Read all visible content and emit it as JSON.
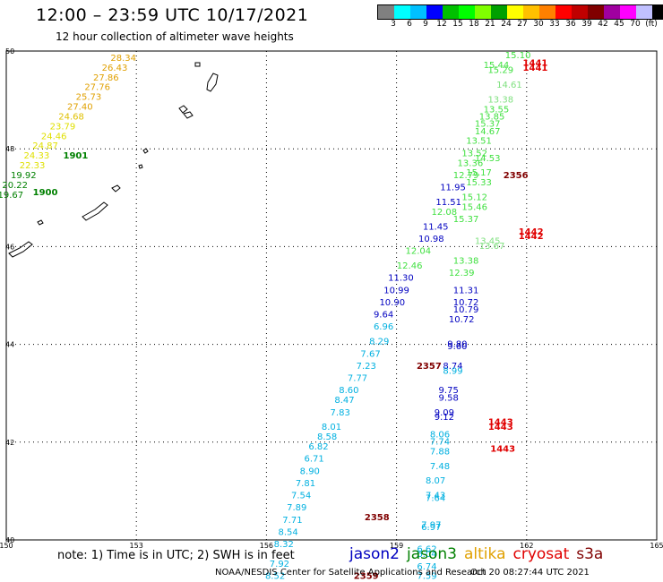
{
  "header": {
    "title": "12:00 – 23:59 UTC 10/17/2021",
    "subtitle": "12 hour collection of altimeter wave heights"
  },
  "legend": {
    "colors": [
      "#808080",
      "#00ffff",
      "#00c0ff",
      "#0000ff",
      "#00c000",
      "#00ff00",
      "#80ff00",
      "#00a000",
      "#ffff00",
      "#ffc000",
      "#ff8000",
      "#ff0000",
      "#c00000",
      "#800000",
      "#a000a0",
      "#ff00ff",
      "#c0c0ff",
      "#000000"
    ],
    "labels": [
      "3",
      "6",
      "9",
      "12",
      "15",
      "18",
      "21",
      "24",
      "27",
      "30",
      "33",
      "36",
      "39",
      "42",
      "45",
      "70",
      "(ft)"
    ]
  },
  "axes": {
    "lon_ticks": [
      "150",
      "153",
      "156",
      "159",
      "162",
      "165"
    ],
    "lat_ticks": [
      "40",
      "42",
      "44",
      "46",
      "48",
      "50"
    ]
  },
  "points": [
    {
      "t": "28.34",
      "c": "#e0a000",
      "lon": 152.7,
      "lat": 49.8
    },
    {
      "t": "26.43",
      "c": "#e0a000",
      "lon": 152.5,
      "lat": 49.6
    },
    {
      "t": "27.86",
      "c": "#e0a000",
      "lon": 152.3,
      "lat": 49.4
    },
    {
      "t": "27.76",
      "c": "#e0a000",
      "lon": 152.1,
      "lat": 49.2
    },
    {
      "t": "25.73",
      "c": "#e0a000",
      "lon": 151.9,
      "lat": 49.0
    },
    {
      "t": "27.40",
      "c": "#e0a000",
      "lon": 151.7,
      "lat": 48.8
    },
    {
      "t": "24.68",
      "c": "#e0c000",
      "lon": 151.5,
      "lat": 48.6
    },
    {
      "t": "23.79",
      "c": "#e0e000",
      "lon": 151.3,
      "lat": 48.4
    },
    {
      "t": "24.46",
      "c": "#e0e000",
      "lon": 151.1,
      "lat": 48.2
    },
    {
      "t": "24.87",
      "c": "#e0e000",
      "lon": 150.9,
      "lat": 48.0
    },
    {
      "t": "24.33",
      "c": "#e0e000",
      "lon": 150.7,
      "lat": 47.8
    },
    {
      "t": "22.33",
      "c": "#e0e000",
      "lon": 150.6,
      "lat": 47.6
    },
    {
      "t": "19.92",
      "c": "#008000",
      "lon": 150.4,
      "lat": 47.4
    },
    {
      "t": "20.22",
      "c": "#008000",
      "lon": 150.2,
      "lat": 47.2
    },
    {
      "t": "19.67",
      "c": "#008000",
      "lon": 150.1,
      "lat": 47.0
    },
    {
      "t": "1901",
      "c": "#008000",
      "lon": 151.6,
      "lat": 47.8,
      "big": true
    },
    {
      "t": "1900",
      "c": "#008000",
      "lon": 150.9,
      "lat": 47.05,
      "big": true
    },
    {
      "t": "15.10",
      "c": "#40e040",
      "lon": 161.8,
      "lat": 49.85
    },
    {
      "t": "15.44",
      "c": "#40e040",
      "lon": 161.3,
      "lat": 49.65
    },
    {
      "t": "15.29",
      "c": "#40e040",
      "lon": 161.4,
      "lat": 49.55
    },
    {
      "t": "14.61",
      "c": "#80e080",
      "lon": 161.6,
      "lat": 49.25
    },
    {
      "t": "13.38",
      "c": "#80e080",
      "lon": 161.4,
      "lat": 48.95
    },
    {
      "t": "13.55",
      "c": "#40e040",
      "lon": 161.3,
      "lat": 48.75
    },
    {
      "t": "13.85",
      "c": "#40e040",
      "lon": 161.2,
      "lat": 48.6
    },
    {
      "t": "15.37",
      "c": "#40e040",
      "lon": 161.1,
      "lat": 48.45
    },
    {
      "t": "14.67",
      "c": "#40e040",
      "lon": 161.1,
      "lat": 48.3
    },
    {
      "t": "13.51",
      "c": "#40e040",
      "lon": 160.9,
      "lat": 48.1
    },
    {
      "t": "13.52",
      "c": "#40e040",
      "lon": 160.8,
      "lat": 47.85
    },
    {
      "t": "14.53",
      "c": "#40e040",
      "lon": 161.1,
      "lat": 47.75
    },
    {
      "t": "13.36",
      "c": "#40e040",
      "lon": 160.7,
      "lat": 47.65
    },
    {
      "t": "15.17",
      "c": "#40e040",
      "lon": 160.9,
      "lat": 47.45
    },
    {
      "t": "12.79",
      "c": "#40e040",
      "lon": 160.6,
      "lat": 47.4
    },
    {
      "t": "15.33",
      "c": "#40e040",
      "lon": 160.9,
      "lat": 47.25
    },
    {
      "t": "11.95",
      "c": "#0000c0",
      "lon": 160.3,
      "lat": 47.15
    },
    {
      "t": "15.12",
      "c": "#40e040",
      "lon": 160.8,
      "lat": 46.95
    },
    {
      "t": "11.51",
      "c": "#0000c0",
      "lon": 160.2,
      "lat": 46.85
    },
    {
      "t": "15.46",
      "c": "#40e040",
      "lon": 160.8,
      "lat": 46.75
    },
    {
      "t": "12.08",
      "c": "#40e040",
      "lon": 160.1,
      "lat": 46.65
    },
    {
      "t": "15.37",
      "c": "#40e040",
      "lon": 160.6,
      "lat": 46.5
    },
    {
      "t": "11.45",
      "c": "#0000c0",
      "lon": 159.9,
      "lat": 46.35
    },
    {
      "t": "10.98",
      "c": "#0000c0",
      "lon": 159.8,
      "lat": 46.1
    },
    {
      "t": "13.45",
      "c": "#80e080",
      "lon": 161.1,
      "lat": 46.05
    },
    {
      "t": "13.67",
      "c": "#80e080",
      "lon": 161.2,
      "lat": 45.95
    },
    {
      "t": "12.04",
      "c": "#40e040",
      "lon": 159.5,
      "lat": 45.85
    },
    {
      "t": "13.38",
      "c": "#40e040",
      "lon": 160.6,
      "lat": 45.65
    },
    {
      "t": "12.46",
      "c": "#40e040",
      "lon": 159.3,
      "lat": 45.55
    },
    {
      "t": "12.39",
      "c": "#40e040",
      "lon": 160.5,
      "lat": 45.4
    },
    {
      "t": "11.30",
      "c": "#0000c0",
      "lon": 159.1,
      "lat": 45.3
    },
    {
      "t": "10.99",
      "c": "#0000c0",
      "lon": 159.0,
      "lat": 45.05
    },
    {
      "t": "11.31",
      "c": "#0000c0",
      "lon": 160.6,
      "lat": 45.05
    },
    {
      "t": "10.90",
      "c": "#0000c0",
      "lon": 158.9,
      "lat": 44.8
    },
    {
      "t": "10.72",
      "c": "#0000c0",
      "lon": 160.6,
      "lat": 44.8
    },
    {
      "t": "10.79",
      "c": "#0000c0",
      "lon": 160.6,
      "lat": 44.65
    },
    {
      "t": "9.64",
      "c": "#0000c0",
      "lon": 158.7,
      "lat": 44.55
    },
    {
      "t": "10.72",
      "c": "#0000c0",
      "lon": 160.5,
      "lat": 44.45
    },
    {
      "t": "6.96",
      "c": "#00b0e0",
      "lon": 158.7,
      "lat": 44.3
    },
    {
      "t": "8.29",
      "c": "#00b0e0",
      "lon": 158.6,
      "lat": 44.0
    },
    {
      "t": "9.80",
      "c": "#0000c0",
      "lon": 160.4,
      "lat": 43.95
    },
    {
      "t": "9.60",
      "c": "#0000c0",
      "lon": 160.4,
      "lat": 43.9
    },
    {
      "t": "7.67",
      "c": "#00b0e0",
      "lon": 158.4,
      "lat": 43.75
    },
    {
      "t": "7.23",
      "c": "#00b0e0",
      "lon": 158.3,
      "lat": 43.5
    },
    {
      "t": "8.74",
      "c": "#0000c0",
      "lon": 160.3,
      "lat": 43.5
    },
    {
      "t": "8.99",
      "c": "#00b0e0",
      "lon": 160.3,
      "lat": 43.4
    },
    {
      "t": "7.77",
      "c": "#00b0e0",
      "lon": 158.1,
      "lat": 43.25
    },
    {
      "t": "8.60",
      "c": "#00b0e0",
      "lon": 157.9,
      "lat": 43.0
    },
    {
      "t": "9.75",
      "c": "#0000c0",
      "lon": 160.2,
      "lat": 43.0
    },
    {
      "t": "9.58",
      "c": "#0000c0",
      "lon": 160.2,
      "lat": 42.85
    },
    {
      "t": "8.47",
      "c": "#00b0e0",
      "lon": 157.8,
      "lat": 42.8
    },
    {
      "t": "7.83",
      "c": "#00b0e0",
      "lon": 157.7,
      "lat": 42.55
    },
    {
      "t": "9.09",
      "c": "#0000c0",
      "lon": 160.1,
      "lat": 42.55
    },
    {
      "t": "9.12",
      "c": "#0000c0",
      "lon": 160.1,
      "lat": 42.45
    },
    {
      "t": "8.01",
      "c": "#00b0e0",
      "lon": 157.5,
      "lat": 42.25
    },
    {
      "t": "8.06",
      "c": "#00b0e0",
      "lon": 160.0,
      "lat": 42.1
    },
    {
      "t": "8.58",
      "c": "#00b0e0",
      "lon": 157.4,
      "lat": 42.05
    },
    {
      "t": "7.74",
      "c": "#00b0e0",
      "lon": 160.0,
      "lat": 41.95
    },
    {
      "t": "6.82",
      "c": "#00b0e0",
      "lon": 157.2,
      "lat": 41.85
    },
    {
      "t": "7.88",
      "c": "#00b0e0",
      "lon": 160.0,
      "lat": 41.75
    },
    {
      "t": "6.71",
      "c": "#00b0e0",
      "lon": 157.1,
      "lat": 41.6
    },
    {
      "t": "7.48",
      "c": "#00b0e0",
      "lon": 160.0,
      "lat": 41.45
    },
    {
      "t": "8.90",
      "c": "#00b0e0",
      "lon": 157.0,
      "lat": 41.35
    },
    {
      "t": "8.07",
      "c": "#00b0e0",
      "lon": 159.9,
      "lat": 41.15
    },
    {
      "t": "7.81",
      "c": "#00b0e0",
      "lon": 156.9,
      "lat": 41.1
    },
    {
      "t": "7.54",
      "c": "#00b0e0",
      "lon": 156.8,
      "lat": 40.85
    },
    {
      "t": "7.43",
      "c": "#00b0e0",
      "lon": 159.9,
      "lat": 40.85
    },
    {
      "t": "7.64",
      "c": "#00b0e0",
      "lon": 159.9,
      "lat": 40.8
    },
    {
      "t": "7.89",
      "c": "#00b0e0",
      "lon": 156.7,
      "lat": 40.6
    },
    {
      "t": "7.71",
      "c": "#00b0e0",
      "lon": 156.6,
      "lat": 40.35
    },
    {
      "t": "7.97",
      "c": "#00b0e0",
      "lon": 159.8,
      "lat": 40.25
    },
    {
      "t": "6.97",
      "c": "#00b0e0",
      "lon": 159.8,
      "lat": 40.2
    },
    {
      "t": "8.54",
      "c": "#00b0e0",
      "lon": 156.5,
      "lat": 40.1
    },
    {
      "t": "8.32",
      "c": "#00b0e0",
      "lon": 156.4,
      "lat": 39.85
    },
    {
      "t": "6.62",
      "c": "#00b0e0",
      "lon": 159.7,
      "lat": 39.75
    },
    {
      "t": "6.04",
      "c": "#00b0e0",
      "lon": 159.7,
      "lat": 39.65
    },
    {
      "t": "7.92",
      "c": "#00b0e0",
      "lon": 156.3,
      "lat": 39.45
    },
    {
      "t": "6.74",
      "c": "#00b0e0",
      "lon": 159.7,
      "lat": 39.4
    },
    {
      "t": "8.52",
      "c": "#00b0e0",
      "lon": 156.2,
      "lat": 39.2
    },
    {
      "t": "7.59",
      "c": "#00b0e0",
      "lon": 159.7,
      "lat": 39.2
    },
    {
      "t": "1441",
      "c": "#e00000",
      "lon": 162.2,
      "lat": 49.7,
      "big": true
    },
    {
      "t": "1441",
      "c": "#e00000",
      "lon": 162.2,
      "lat": 49.6,
      "big": true
    },
    {
      "t": "2356",
      "c": "#800000",
      "lon": 161.75,
      "lat": 47.4,
      "big": true
    },
    {
      "t": "1442",
      "c": "#e00000",
      "lon": 162.1,
      "lat": 46.25,
      "big": true
    },
    {
      "t": "1442",
      "c": "#e00000",
      "lon": 162.1,
      "lat": 46.15,
      "big": true
    },
    {
      "t": "2357",
      "c": "#800000",
      "lon": 159.75,
      "lat": 43.5,
      "big": true
    },
    {
      "t": "1443",
      "c": "#e00000",
      "lon": 161.4,
      "lat": 42.35,
      "big": true
    },
    {
      "t": "1443",
      "c": "#e00000",
      "lon": 161.4,
      "lat": 42.25,
      "big": true
    },
    {
      "t": "1443",
      "c": "#e00000",
      "lon": 161.45,
      "lat": 41.8,
      "big": true
    },
    {
      "t": "2358",
      "c": "#800000",
      "lon": 158.55,
      "lat": 40.4,
      "big": true
    },
    {
      "t": "2359",
      "c": "#800000",
      "lon": 158.3,
      "lat": 39.2,
      "big": true
    }
  ],
  "note": "note:  1) Time is in UTC;  2) SWH is in feet",
  "satellites": [
    {
      "name": "jason2",
      "color": "#0000c0"
    },
    {
      "name": "jason3",
      "color": "#008000"
    },
    {
      "name": "altika",
      "color": "#e0a000"
    },
    {
      "name": "cryosat",
      "color": "#e00000"
    },
    {
      "name": "s3a",
      "color": "#800000"
    }
  ],
  "credit": "NOAA/NESDIS Center for Satellite Applications and Research",
  "timestamp": "Oct 20 08:27:44 UTC 2021"
}
